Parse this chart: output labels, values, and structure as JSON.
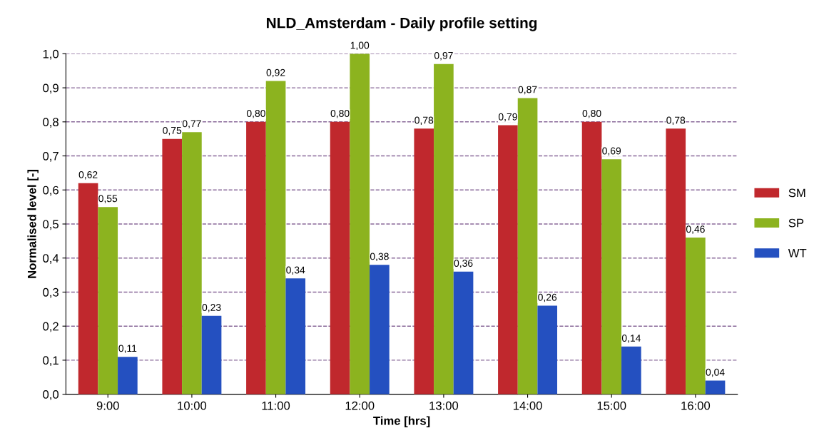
{
  "chart_data": {
    "type": "bar",
    "title": "NLD_Amsterdam - Daily profile setting",
    "xlabel": "Time [hrs]",
    "ylabel": "Normalised level [-]",
    "categories": [
      "9:00",
      "10:00",
      "11:00",
      "12:00",
      "13:00",
      "14:00",
      "15:00",
      "16:00"
    ],
    "series": [
      {
        "name": "SM",
        "color": "#c0282d",
        "values": [
          0.62,
          0.75,
          0.8,
          0.8,
          0.78,
          0.79,
          0.8,
          0.78
        ],
        "value_labels": [
          "0,62",
          "0,75",
          "0,80",
          "0,80",
          "0,78",
          "0,79",
          "0,80",
          "0,78"
        ]
      },
      {
        "name": "SP",
        "color": "#8cb31f",
        "values": [
          0.55,
          0.77,
          0.92,
          1.0,
          0.97,
          0.87,
          0.69,
          0.46
        ],
        "value_labels": [
          "0,55",
          "0,77",
          "0,92",
          "1,00",
          "0,97",
          "0,87",
          "0,69",
          "0,46"
        ]
      },
      {
        "name": "WT",
        "color": "#2450c0",
        "values": [
          0.11,
          0.23,
          0.34,
          0.38,
          0.36,
          0.26,
          0.14,
          0.04
        ],
        "value_labels": [
          "0,11",
          "0,23",
          "0,34",
          "0,38",
          "0,36",
          "0,26",
          "0,14",
          "0,04"
        ]
      }
    ],
    "ylim": [
      0,
      1.0
    ],
    "yticks": [
      {
        "value": 0,
        "label": "0,0"
      },
      {
        "value": 0.1,
        "label": "0,1"
      },
      {
        "value": 0.2,
        "label": "0,2"
      },
      {
        "value": 0.3,
        "label": "0,3"
      },
      {
        "value": 0.4,
        "label": "0,4"
      },
      {
        "value": 0.5,
        "label": "0,5"
      },
      {
        "value": 0.6,
        "label": "0,6"
      },
      {
        "value": 0.7,
        "label": "0,7"
      },
      {
        "value": 0.8,
        "label": "0,8"
      },
      {
        "value": 0.9,
        "label": "0,9"
      },
      {
        "value": 1.0,
        "label": "1,0"
      }
    ],
    "grid": "y",
    "legend": "right"
  }
}
